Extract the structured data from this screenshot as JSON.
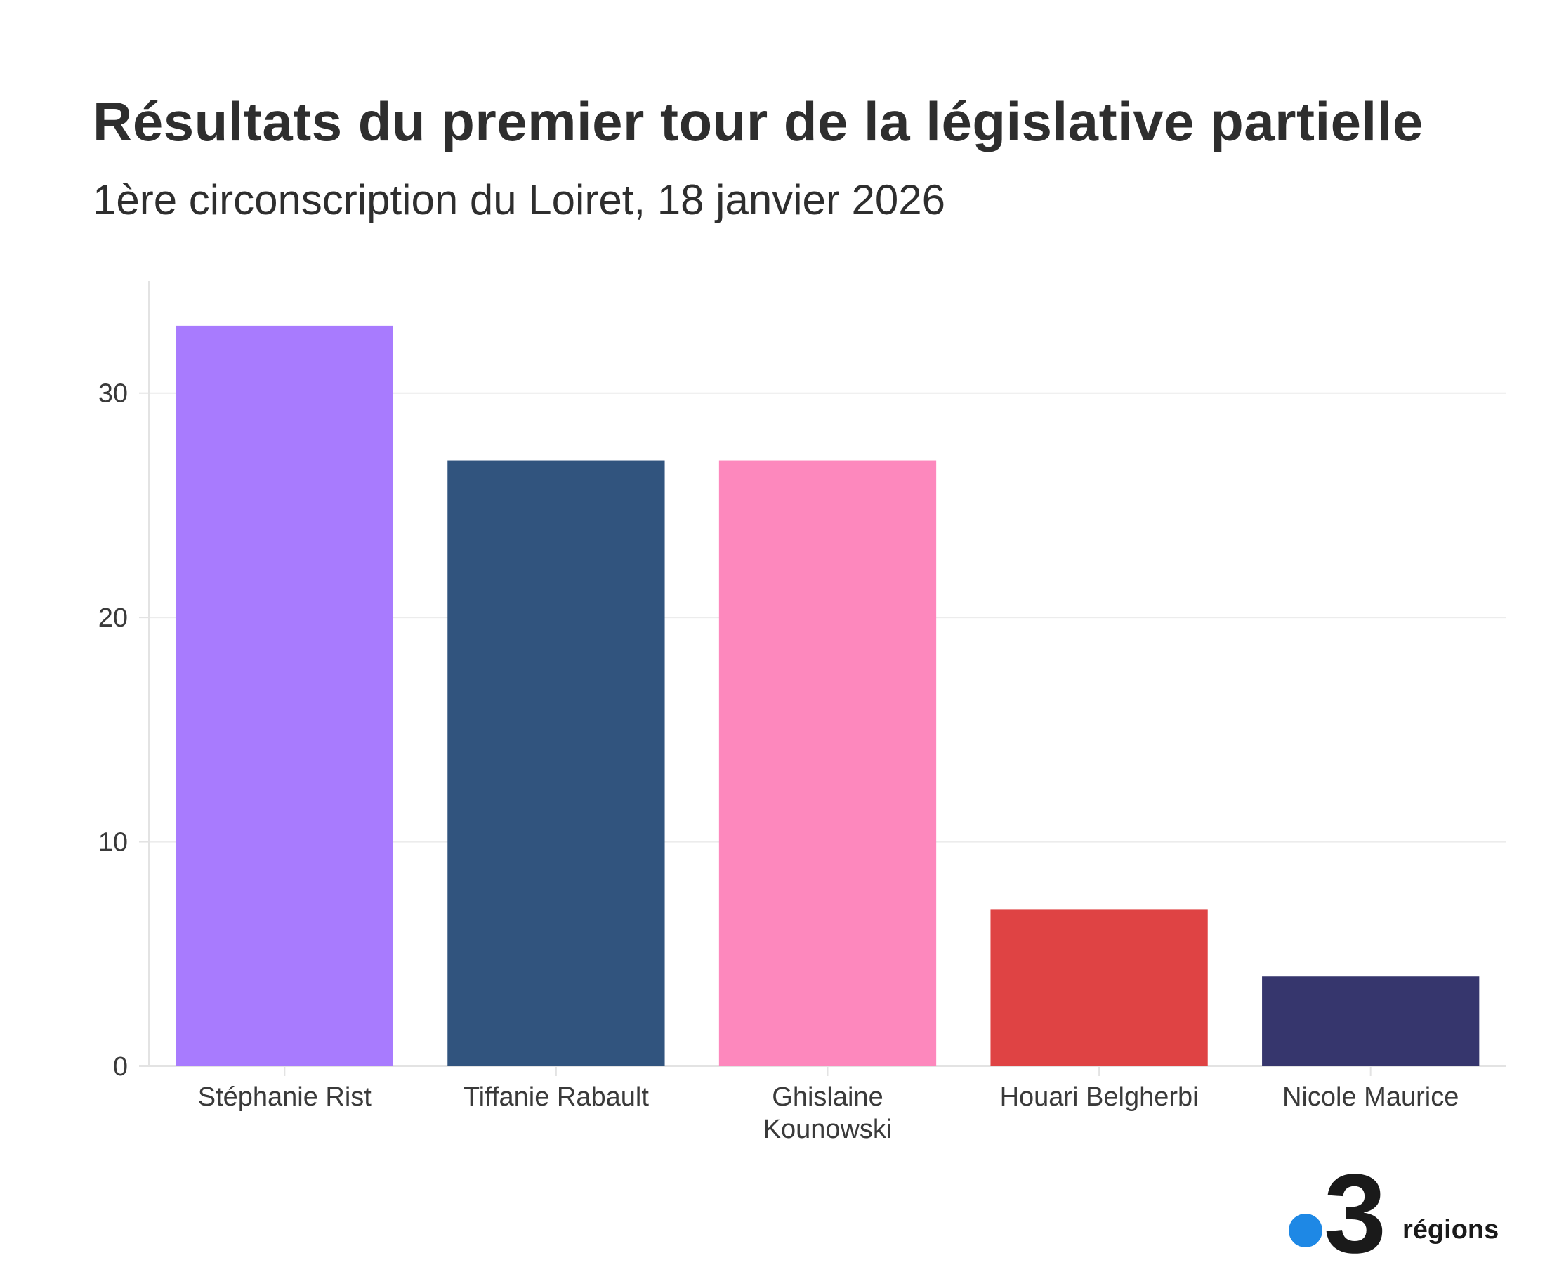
{
  "chart_data": {
    "type": "bar",
    "title": "Résultats du premier tour de la législative partielle",
    "subtitle": "1ère circonscription du Loiret, 18 janvier 2026",
    "categories": [
      [
        "Stéphanie Rist"
      ],
      [
        "Tiffanie Rabault"
      ],
      [
        "Ghislaine",
        "Kounowski"
      ],
      [
        "Houari Belgherbi"
      ],
      [
        "Nicole Maurice"
      ]
    ],
    "values": [
      33,
      27,
      27,
      7,
      4
    ],
    "colors": [
      "#a87bfe",
      "#31547e",
      "#fd88bd",
      "#df4344",
      "#36366d"
    ],
    "yticks": [
      0,
      10,
      20,
      30
    ],
    "ylim": [
      0,
      35
    ],
    "xlabel": "",
    "ylabel": "",
    "grid": true,
    "legend": "none"
  },
  "branding": {
    "logo_number": "3",
    "logo_text": "régions",
    "dot_color": "#1e88e5"
  }
}
